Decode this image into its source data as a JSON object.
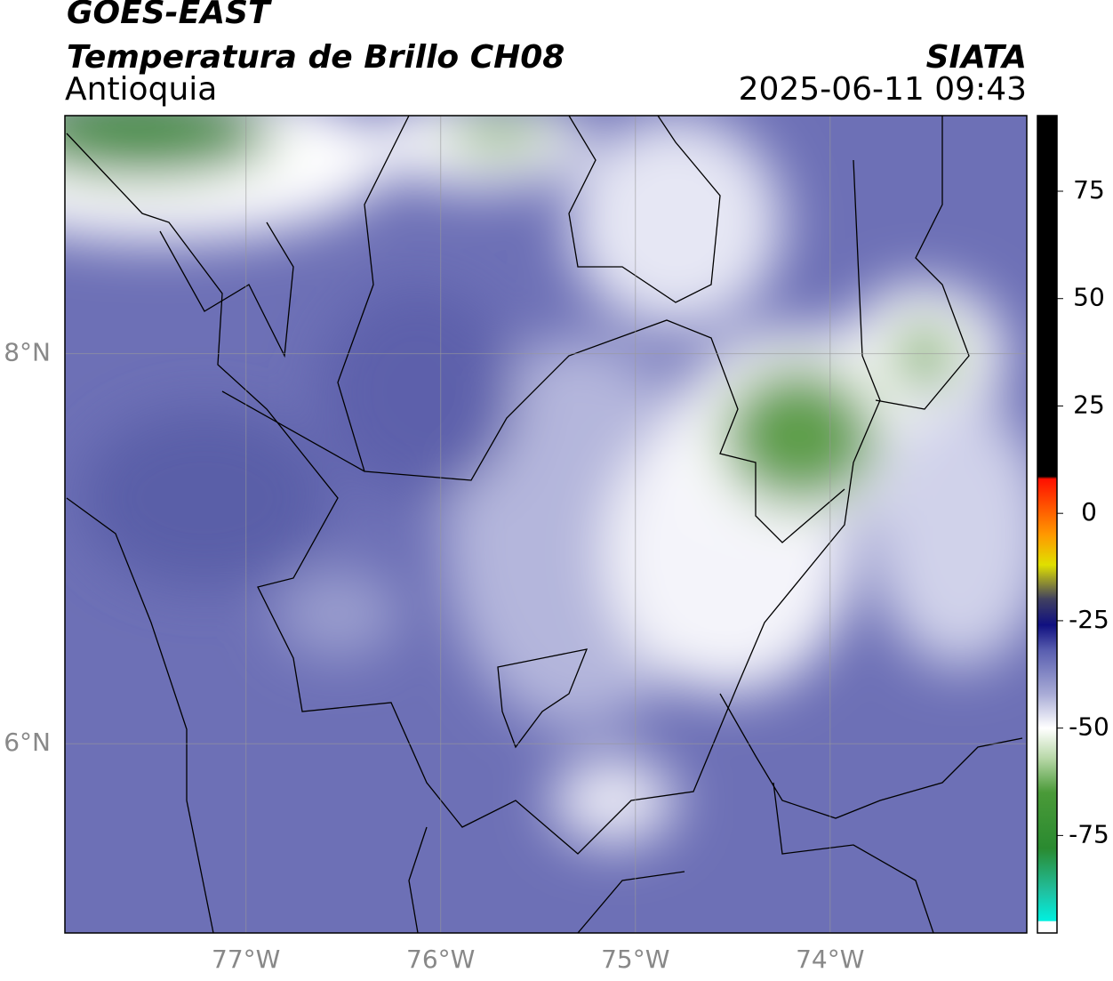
{
  "header": {
    "title": "GOES-EAST",
    "subtitle": "Temperatura de Brillo CH08",
    "region": "Antioquia",
    "source": "SIATA",
    "datetime": "2025-06-11 09:43"
  },
  "map": {
    "xlim": [
      -77.93,
      -72.99
    ],
    "ylim": [
      5.03,
      9.22
    ],
    "xticks": [
      {
        "value": -77,
        "label": "77°W"
      },
      {
        "value": -76,
        "label": "76°W"
      },
      {
        "value": -75,
        "label": "75°W"
      },
      {
        "value": -74,
        "label": "74°W"
      }
    ],
    "yticks": [
      {
        "value": 6,
        "label": "6°N"
      },
      {
        "value": 8,
        "label": "8°N"
      }
    ],
    "grid": true
  },
  "colorbar": {
    "lim": [
      -97.7,
      92.6
    ],
    "ticks": [
      75,
      50,
      25,
      0,
      -25,
      -50,
      -75
    ],
    "stops": [
      {
        "value": -97.7,
        "color": "#ffffff"
      },
      {
        "value": -95,
        "color": "#ffffff"
      },
      {
        "value": -94.9,
        "color": "#00f0e0"
      },
      {
        "value": -88,
        "color": "#20c0a0"
      },
      {
        "value": -78,
        "color": "#2a8a30"
      },
      {
        "value": -65,
        "color": "#4a9a38"
      },
      {
        "value": -57,
        "color": "#b8d8a8"
      },
      {
        "value": -50,
        "color": "#ffffff"
      },
      {
        "value": -42,
        "color": "#a8abd6"
      },
      {
        "value": -32,
        "color": "#5a5fb0"
      },
      {
        "value": -26,
        "color": "#101080"
      },
      {
        "value": -20,
        "color": "#404060"
      },
      {
        "value": -12,
        "color": "#e0e000"
      },
      {
        "value": -5,
        "color": "#ff9900"
      },
      {
        "value": 8,
        "color": "#ff1000"
      },
      {
        "value": 8.6,
        "color": "#000000"
      },
      {
        "value": 92.6,
        "color": "#000000"
      }
    ]
  }
}
